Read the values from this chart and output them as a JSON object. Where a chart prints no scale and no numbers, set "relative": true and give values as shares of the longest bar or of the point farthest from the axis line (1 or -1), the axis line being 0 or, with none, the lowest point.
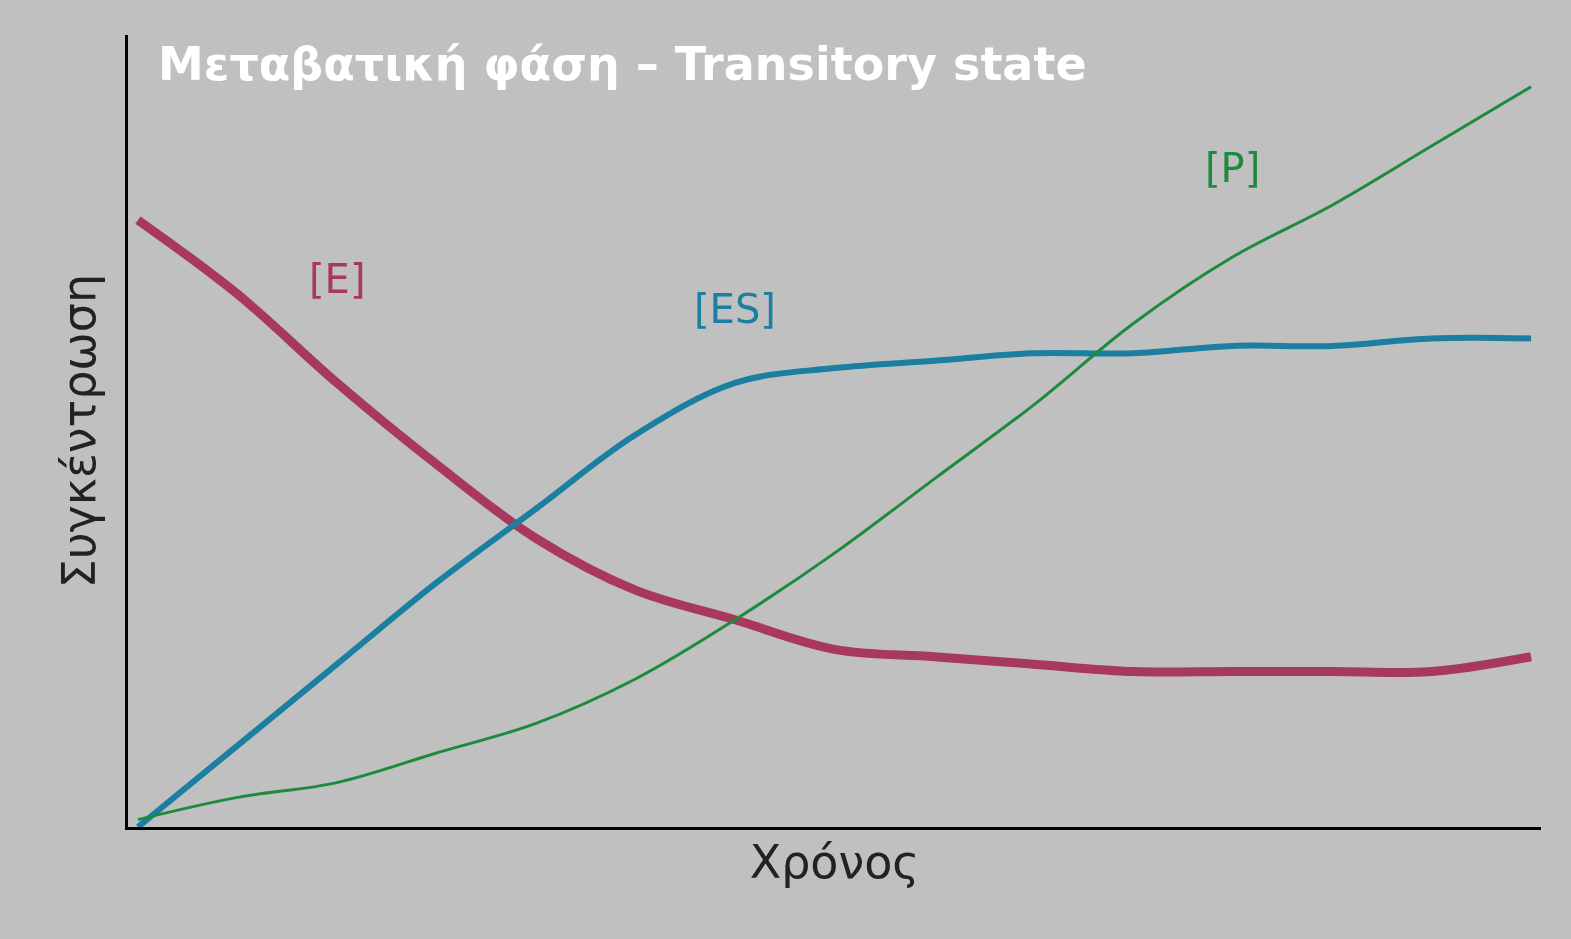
{
  "chart_data": {
    "type": "line",
    "title": "Μεταβατική φάση – Transitory state",
    "xlabel": "Χρόνος",
    "ylabel": "Συγκέντρωση",
    "relative": true,
    "legend": false,
    "grid": false,
    "marker": "none",
    "categories": [
      null,
      null,
      null,
      null,
      null,
      null,
      null,
      null,
      null,
      null,
      null,
      null,
      null,
      null,
      null
    ],
    "series": [
      {
        "name": "[E]",
        "color": "#a8385e",
        "values": [
          0.82,
          0.72,
          0.6,
          0.49,
          0.39,
          0.32,
          0.28,
          0.24,
          0.23,
          0.22,
          0.21,
          0.21,
          0.21,
          0.21,
          0.23
        ]
      },
      {
        "name": "[ES]",
        "color": "#1a7fa0",
        "values": [
          0,
          0.11,
          0.22,
          0.33,
          0.43,
          0.53,
          0.6,
          0.62,
          0.63,
          0.64,
          0.64,
          0.65,
          0.65,
          0.66,
          0.66
        ]
      },
      {
        "name": "[P]",
        "color": "#1e8a3e",
        "values": [
          0.01,
          0.04,
          0.06,
          0.1,
          0.14,
          0.2,
          0.28,
          0.37,
          0.47,
          0.57,
          0.68,
          0.77,
          0.84,
          0.92,
          1.0
        ]
      }
    ]
  }
}
